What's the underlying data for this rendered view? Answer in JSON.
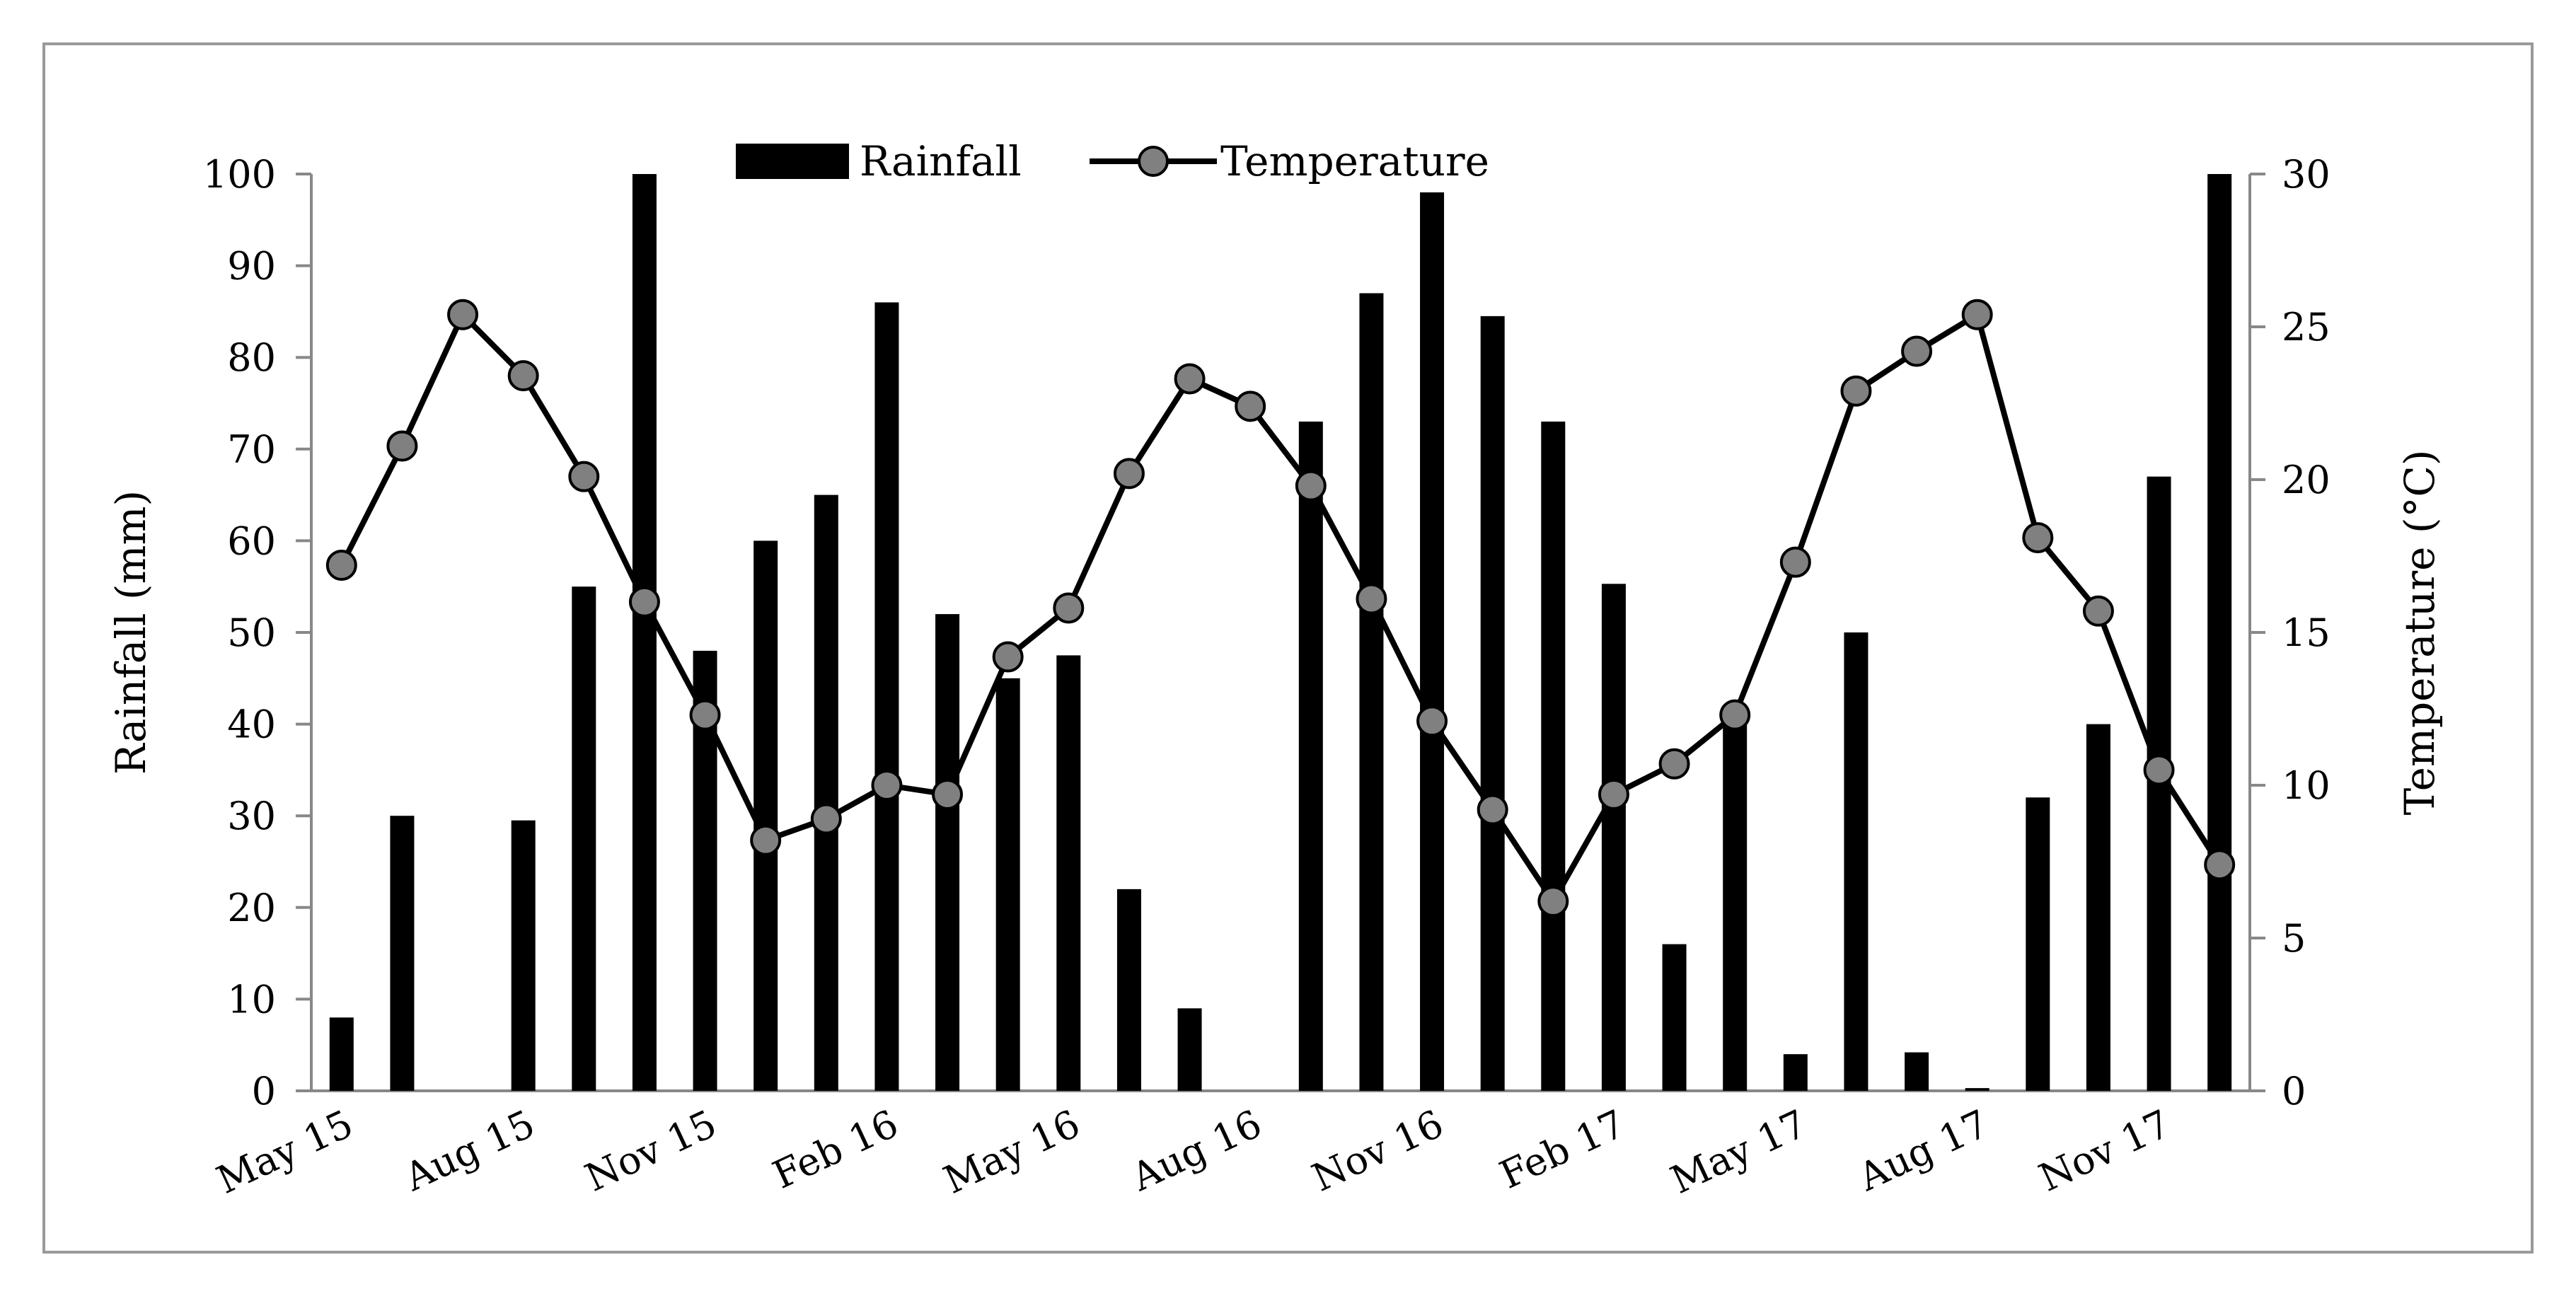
{
  "chart_data": {
    "type": "bar+line",
    "title": "",
    "categories": [
      "May 15",
      "Jun 15",
      "Jul 15",
      "Aug 15",
      "Sep 15",
      "Oct 15",
      "Nov 15",
      "Dec 15",
      "Jan 16",
      "Feb 16",
      "Mar 16",
      "Apr 16",
      "May 16",
      "Jun 16",
      "Jul 16",
      "Aug 16",
      "Sep 16",
      "Oct 16",
      "Nov 16",
      "Dec 16",
      "Jan 17",
      "Feb 17",
      "Mar 17",
      "Apr 17",
      "May 17",
      "Jun 17",
      "Jul 17",
      "Aug 17",
      "Sep 17",
      "Oct 17",
      "Nov 17",
      "Dec 17"
    ],
    "xtick_labels": [
      {
        "index": 0,
        "label": "May 15"
      },
      {
        "index": 3,
        "label": "Aug 15"
      },
      {
        "index": 6,
        "label": "Nov 15"
      },
      {
        "index": 9,
        "label": "Feb 16"
      },
      {
        "index": 12,
        "label": "May 16"
      },
      {
        "index": 15,
        "label": "Aug 16"
      },
      {
        "index": 18,
        "label": "Nov 16"
      },
      {
        "index": 21,
        "label": "Feb 17"
      },
      {
        "index": 24,
        "label": "May 17"
      },
      {
        "index": 27,
        "label": "Aug 17"
      },
      {
        "index": 30,
        "label": "Nov 17"
      }
    ],
    "series": [
      {
        "name": "Rainfall",
        "type": "bar",
        "axis": "left",
        "color": "#000000",
        "values": [
          8,
          30,
          0,
          29.5,
          55,
          100,
          48,
          60,
          65,
          86,
          52,
          45,
          47.5,
          22,
          9,
          0,
          73,
          87,
          98,
          84.5,
          73,
          55.3,
          16,
          41,
          4,
          50,
          4.2,
          0.3,
          32,
          40,
          67,
          100
        ]
      },
      {
        "name": "Temperature",
        "type": "line",
        "axis": "right",
        "color": "#000000",
        "marker_color": "#808080",
        "values": [
          17.2,
          21.1,
          25.4,
          23.4,
          20.1,
          16.0,
          12.3,
          8.2,
          8.9,
          10.0,
          9.7,
          14.2,
          15.8,
          20.2,
          23.3,
          22.4,
          19.8,
          16.1,
          12.1,
          9.2,
          6.2,
          9.7,
          10.7,
          12.3,
          17.3,
          22.9,
          24.2,
          25.4,
          18.1,
          15.7,
          10.5,
          7.4
        ]
      }
    ],
    "ylabel": "Rainfall (mm)",
    "ylabel_right": "Temperature  (°C)",
    "ylim": [
      0,
      100
    ],
    "ylim_right": [
      0,
      30
    ],
    "yticks": [
      "0",
      "10",
      "20",
      "30",
      "40",
      "50",
      "60",
      "70",
      "80",
      "90",
      "100"
    ],
    "yticks_right": [
      "0",
      "5",
      "10",
      "15",
      "20",
      "25",
      "30"
    ],
    "legend": {
      "position": "top-center",
      "entries": [
        "Rainfall",
        "Temperature"
      ]
    },
    "grid": false
  }
}
